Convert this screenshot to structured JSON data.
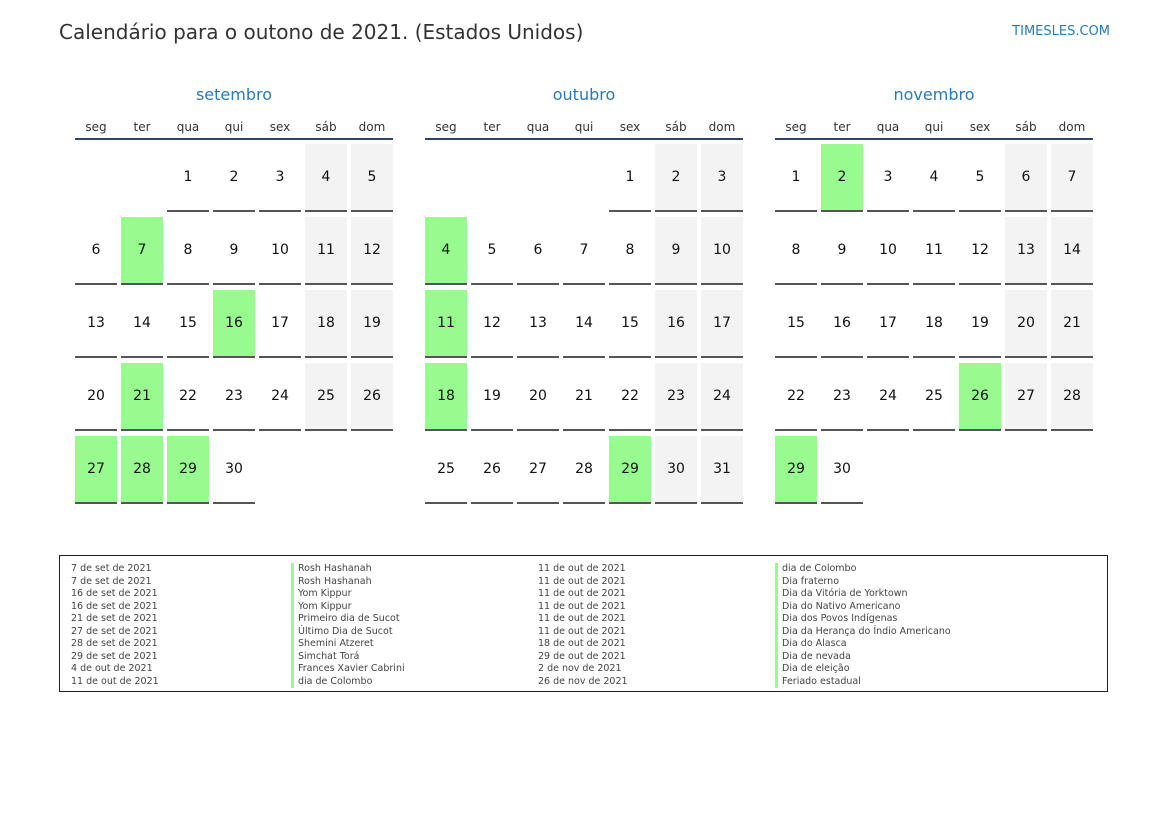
{
  "header": {
    "title": "Calendário para o outono de 2021. (Estados Unidos)",
    "site": "TIMESLES.COM"
  },
  "weekdays": [
    "seg",
    "ter",
    "qua",
    "qui",
    "sex",
    "sáb",
    "dom"
  ],
  "colors": {
    "accent": "#2a7ab9",
    "holiday": "#98fb8f",
    "weekend": "#f3f3f3",
    "header_rule": "#2e4466"
  },
  "months": [
    {
      "name": "setembro",
      "weeks": [
        [
          "",
          "",
          "1",
          "2",
          "3",
          "4",
          "5"
        ],
        [
          "6",
          "7",
          "8",
          "9",
          "10",
          "11",
          "12"
        ],
        [
          "13",
          "14",
          "15",
          "16",
          "17",
          "18",
          "19"
        ],
        [
          "20",
          "21",
          "22",
          "23",
          "24",
          "25",
          "26"
        ],
        [
          "27",
          "28",
          "29",
          "30",
          "",
          "",
          ""
        ]
      ],
      "holidays": [
        "7",
        "16",
        "21",
        "27",
        "28",
        "29"
      ]
    },
    {
      "name": "outubro",
      "weeks": [
        [
          "",
          "",
          "",
          "",
          "1",
          "2",
          "3"
        ],
        [
          "4",
          "5",
          "6",
          "7",
          "8",
          "9",
          "10"
        ],
        [
          "11",
          "12",
          "13",
          "14",
          "15",
          "16",
          "17"
        ],
        [
          "18",
          "19",
          "20",
          "21",
          "22",
          "23",
          "24"
        ],
        [
          "25",
          "26",
          "27",
          "28",
          "29",
          "30",
          "31"
        ]
      ],
      "holidays": [
        "4",
        "11",
        "18",
        "29"
      ]
    },
    {
      "name": "novembro",
      "weeks": [
        [
          "1",
          "2",
          "3",
          "4",
          "5",
          "6",
          "7"
        ],
        [
          "8",
          "9",
          "10",
          "11",
          "12",
          "13",
          "14"
        ],
        [
          "15",
          "16",
          "17",
          "18",
          "19",
          "20",
          "21"
        ],
        [
          "22",
          "23",
          "24",
          "25",
          "26",
          "27",
          "28"
        ],
        [
          "29",
          "30",
          "",
          "",
          "",
          "",
          ""
        ]
      ],
      "holidays": [
        "2",
        "26",
        "29"
      ]
    }
  ],
  "holidays_list": [
    {
      "date": "7 de set de 2021",
      "name": "Rosh Hashanah"
    },
    {
      "date": "7 de set de 2021",
      "name": "Rosh Hashanah"
    },
    {
      "date": "16 de set de 2021",
      "name": "Yom Kippur"
    },
    {
      "date": "16 de set de 2021",
      "name": "Yom Kippur"
    },
    {
      "date": "21 de set de 2021",
      "name": "Primeiro dia de Sucot"
    },
    {
      "date": "27 de set de 2021",
      "name": "Último Dia de Sucot"
    },
    {
      "date": "28 de set de 2021",
      "name": "Shemini Atzeret"
    },
    {
      "date": "29 de set de 2021",
      "name": "Simchat Torá"
    },
    {
      "date": "4 de out de 2021",
      "name": "Frances Xavier Cabrini"
    },
    {
      "date": "11 de out de 2021",
      "name": "dia de Colombo"
    },
    {
      "date": "11 de out de 2021",
      "name": "dia de Colombo"
    },
    {
      "date": "11 de out de 2021",
      "name": "Dia fraterno"
    },
    {
      "date": "11 de out de 2021",
      "name": "Dia da Vitória de Yorktown"
    },
    {
      "date": "11 de out de 2021",
      "name": "Dia do Nativo Americano"
    },
    {
      "date": "11 de out de 2021",
      "name": "Dia dos Povos Indígenas"
    },
    {
      "date": "11 de out de 2021",
      "name": "Dia da Herança do Índio Americano"
    },
    {
      "date": "18 de out de 2021",
      "name": "Dia do Alasca"
    },
    {
      "date": "29 de out de 2021",
      "name": "Dia de nevada"
    },
    {
      "date": "2 de nov de 2021",
      "name": "Dia de eleição"
    },
    {
      "date": "26 de nov de 2021",
      "name": "Feriado estadual"
    }
  ]
}
